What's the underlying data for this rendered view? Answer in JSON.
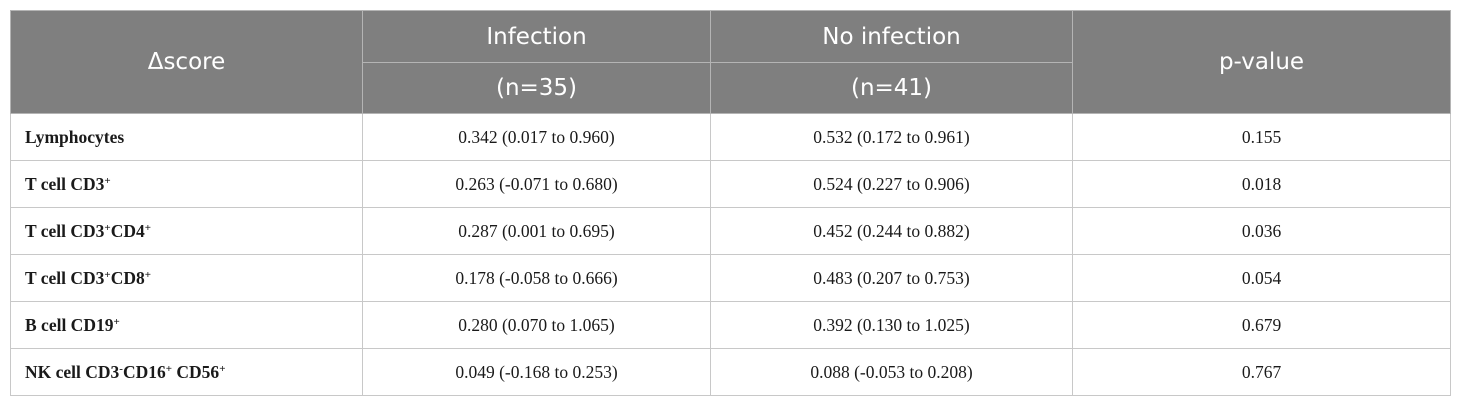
{
  "header": {
    "col1": "Δscore",
    "col2_top": "Infection",
    "col2_bottom": "(n=35)",
    "col3_top": "No infection",
    "col3_bottom": "(n=41)",
    "col4": "p-value"
  },
  "rows": [
    {
      "label": "Lymphocytes",
      "infection": "0.342 (0.017 to 0.960)",
      "no_infection": "0.532 (0.172 to 0.961)",
      "p": "0.155"
    },
    {
      "label": "T cell CD3",
      "infection": "0.263 (-0.071 to 0.680)",
      "no_infection": "0.524 (0.227 to 0.906)",
      "p": "0.018"
    },
    {
      "label_a": "T cell CD3",
      "label_b": "CD4",
      "infection": "0.287 (0.001 to 0.695)",
      "no_infection": "0.452 (0.244 to 0.882)",
      "p": "0.036"
    },
    {
      "label_a": "T cell CD3",
      "label_b": "CD8",
      "infection": "0.178 (-0.058 to 0.666)",
      "no_infection": "0.483 (0.207 to 0.753)",
      "p": "0.054"
    },
    {
      "label": "B cell CD19",
      "infection": "0.280 (0.070 to 1.065)",
      "no_infection": "0.392 (0.130 to 1.025)",
      "p": "0.679"
    },
    {
      "label_a": "NK cell CD3",
      "label_b": "CD16",
      "label_c": " CD56",
      "infection": "0.049 (-0.168 to 0.253)",
      "no_infection": "0.088 (-0.053 to 0.208)",
      "p": "0.767"
    }
  ],
  "sup": {
    "plus": "+",
    "minus": "-"
  }
}
